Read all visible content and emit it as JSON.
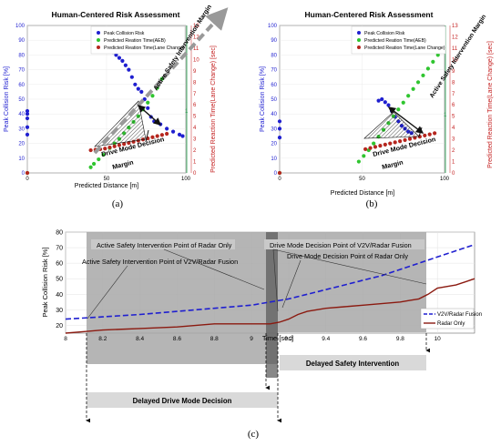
{
  "colors": {
    "risk": "#1f1fd0",
    "aeb": "#2fc52f",
    "lane": "#b5261e",
    "green_axis": "#1e9e48",
    "red_axis": "#c42020",
    "fusion_line": "#1f1fd0",
    "radar_line": "#8b1a10",
    "gray_box": "#a8a8a8",
    "dark_band": "#6a6a6a",
    "label_box": "#d9d9d9"
  },
  "chart_data": [
    {
      "type": "scatter",
      "panel_label": "(a)",
      "title": "Human-Centered Risk Assessment",
      "xlabel": "Predicted Distance [m]",
      "ylabel": "Peak Collision Risk [%]",
      "y2label": "Predicted Reaction Time(Lane Change) [sec]",
      "xlim": [
        0,
        100
      ],
      "ylim": [
        0,
        100
      ],
      "y2lim": [
        0,
        13
      ],
      "xticks": [
        "0",
        "50",
        "100"
      ],
      "yticks": [
        "0",
        "10",
        "20",
        "30",
        "40",
        "50",
        "60",
        "70",
        "80",
        "90",
        "100"
      ],
      "y2ticks": [
        "0",
        "1",
        "2",
        "3",
        "4",
        "5",
        "6",
        "7",
        "8",
        "9",
        "10",
        "11",
        "12",
        "13"
      ],
      "inner_tick_right": "1",
      "legend": [
        "Peak Collision Risk",
        "Predicted Reation Time(AEB)",
        "Predicted Reation Time(Lane Change)"
      ],
      "legend_position": "top-right",
      "annotations": {
        "drive_mode_decision": "Drive Mode Decision",
        "margin": "Margin",
        "active_safety": "Active Safety Intervention Margin"
      },
      "series": [
        {
          "name": "Peak Collision Risk",
          "points": [
            [
              0,
              26
            ],
            [
              0,
              31
            ],
            [
              0,
              37
            ],
            [
              0,
              40
            ],
            [
              0,
              42
            ],
            [
              52,
              85
            ],
            [
              54,
              82
            ],
            [
              56,
              80
            ],
            [
              58,
              78
            ],
            [
              60,
              76
            ],
            [
              62,
              73
            ],
            [
              64,
              70
            ],
            [
              66,
              65
            ],
            [
              68,
              60
            ],
            [
              70,
              57
            ],
            [
              72,
              55
            ],
            [
              74,
              50
            ],
            [
              76,
              44
            ],
            [
              78,
              38
            ],
            [
              80,
              35
            ],
            [
              84,
              33
            ],
            [
              88,
              30
            ],
            [
              92,
              28
            ],
            [
              96,
              26
            ],
            [
              98,
              25
            ]
          ]
        },
        {
          "name": "Predicted Reation Time(AEB)",
          "points": [
            [
              0,
              0
            ],
            [
              40,
              0.5
            ],
            [
              42,
              0.8
            ],
            [
              45,
              1.2
            ],
            [
              48,
              1.6
            ],
            [
              52,
              2.2
            ],
            [
              55,
              2.6
            ],
            [
              58,
              3.0
            ],
            [
              61,
              3.5
            ],
            [
              64,
              4.0
            ],
            [
              67,
              4.5
            ],
            [
              70,
              5.0
            ],
            [
              73,
              5.6
            ],
            [
              76,
              6.2
            ],
            [
              79,
              6.8
            ],
            [
              82,
              7.5
            ],
            [
              85,
              8.3
            ]
          ]
        },
        {
          "name": "Predicted Reation Time(Lane Change)",
          "points": [
            [
              0,
              0
            ],
            [
              40,
              2.0
            ],
            [
              43,
              2.05
            ],
            [
              46,
              2.1
            ],
            [
              49,
              2.15
            ],
            [
              52,
              2.25
            ],
            [
              55,
              2.35
            ],
            [
              58,
              2.45
            ],
            [
              61,
              2.55
            ],
            [
              64,
              2.65
            ],
            [
              67,
              2.75
            ],
            [
              70,
              2.85
            ],
            [
              73,
              2.95
            ],
            [
              76,
              3.05
            ],
            [
              79,
              3.15
            ],
            [
              82,
              3.25
            ],
            [
              85,
              3.35
            ],
            [
              88,
              3.45
            ]
          ]
        }
      ]
    },
    {
      "type": "scatter",
      "panel_label": "(b)",
      "title": "Human-Centered Risk Assessment",
      "xlabel": "Predicted Distance [m]",
      "ylabel": "Peak Collision Risk [%]",
      "y2label": "Predicted Reaction Time(Lane Change) [sec]",
      "xlim": [
        0,
        100
      ],
      "ylim": [
        0,
        100
      ],
      "y2lim": [
        0,
        13
      ],
      "xticks": [
        "0",
        "50",
        "100"
      ],
      "yticks": [
        "0",
        "10",
        "20",
        "30",
        "40",
        "50",
        "60",
        "70",
        "80",
        "90",
        "100"
      ],
      "y2ticks": [
        "0",
        "1",
        "2",
        "3",
        "4",
        "5",
        "6",
        "7",
        "8",
        "9",
        "10",
        "11",
        "12",
        "13"
      ],
      "inner_tick_right": "1",
      "legend": [
        "Peak Collision Risk",
        "Predicted Reation Time(AEB)",
        "Predicted Reation Time(Lane Change)"
      ],
      "legend_position": "top-right",
      "annotations": {
        "drive_mode_decision": "Drive Mode Decision",
        "margin": "Margin",
        "active_safety": "Active Safety Intervention Margin"
      },
      "series": [
        {
          "name": "Peak Collision Risk",
          "points": [
            [
              0,
              24
            ],
            [
              0,
              30
            ],
            [
              0,
              35
            ],
            [
              60,
              49
            ],
            [
              62,
              50
            ],
            [
              64,
              48
            ],
            [
              66,
              46
            ],
            [
              68,
              42
            ],
            [
              70,
              38
            ],
            [
              72,
              35
            ],
            [
              74,
              32
            ],
            [
              76,
              30
            ],
            [
              78,
              28
            ],
            [
              80,
              27
            ]
          ]
        },
        {
          "name": "Predicted Reation Time(AEB)",
          "points": [
            [
              0,
              0
            ],
            [
              48,
              1.0
            ],
            [
              51,
              1.5
            ],
            [
              54,
              2.0
            ],
            [
              57,
              2.6
            ],
            [
              60,
              3.2
            ],
            [
              63,
              3.8
            ],
            [
              66,
              4.4
            ],
            [
              69,
              5.0
            ],
            [
              72,
              5.6
            ],
            [
              75,
              6.2
            ],
            [
              78,
              6.8
            ],
            [
              81,
              7.4
            ],
            [
              84,
              8.0
            ],
            [
              87,
              8.6
            ],
            [
              90,
              9.2
            ],
            [
              93,
              9.8
            ],
            [
              96,
              10.4
            ]
          ]
        },
        {
          "name": "Predicted Reation Time(Lane Change)",
          "points": [
            [
              0,
              0
            ],
            [
              52,
              2.1
            ],
            [
              55,
              2.2
            ],
            [
              58,
              2.3
            ],
            [
              61,
              2.4
            ],
            [
              64,
              2.5
            ],
            [
              67,
              2.6
            ],
            [
              70,
              2.7
            ],
            [
              73,
              2.8
            ],
            [
              76,
              2.9
            ],
            [
              79,
              3.0
            ],
            [
              82,
              3.1
            ],
            [
              85,
              3.2
            ],
            [
              88,
              3.3
            ],
            [
              91,
              3.4
            ],
            [
              94,
              3.5
            ]
          ]
        }
      ]
    },
    {
      "type": "line",
      "panel_label": "(c)",
      "xlabel": "Time [sec]",
      "ylabel": "Peak Collision Risk [%]",
      "xlim": [
        8,
        10.2
      ],
      "ylim": [
        15,
        80
      ],
      "xticks": [
        "8",
        "8.2",
        "8.4",
        "8.6",
        "8.8",
        "9",
        "9.2",
        "9.4",
        "9.6",
        "9.8",
        "10"
      ],
      "yticks": [
        "20",
        "30",
        "40",
        "50",
        "60",
        "70",
        "80"
      ],
      "legend_position": "bottom-right",
      "series": [
        {
          "name": "V2V/Radar Fusion",
          "x": [
            8.0,
            8.2,
            8.4,
            8.6,
            8.8,
            9.0,
            9.1,
            9.2,
            9.3,
            9.4,
            9.5,
            9.6,
            9.7,
            9.8,
            9.9,
            10.0,
            10.1,
            10.2
          ],
          "values": [
            24,
            25.5,
            27,
            29,
            31,
            33,
            35,
            37,
            40,
            43,
            46,
            49,
            52,
            56,
            60,
            64,
            68,
            72
          ]
        },
        {
          "name": "Radar Only",
          "x": [
            8.0,
            8.1,
            8.2,
            8.4,
            8.6,
            8.8,
            9.0,
            9.1,
            9.15,
            9.2,
            9.25,
            9.3,
            9.4,
            9.5,
            9.6,
            9.7,
            9.8,
            9.85,
            9.9,
            9.95,
            10.0,
            10.1,
            10.2
          ],
          "values": [
            15,
            16,
            17,
            18,
            19,
            21,
            21,
            21,
            22,
            24,
            27,
            29,
            31,
            32,
            33,
            34,
            35,
            36,
            37,
            40,
            44,
            46,
            50
          ]
        }
      ],
      "annotations": {
        "active_radar": "Active Safety Intervention Point of Radar Only",
        "drive_v2v": "Drive Mode Decision Point of V2V/Radar Fusion",
        "drive_radar": "Drive Mode Decision Point of Radar Only",
        "active_v2v": "Active Safety Intervention Point of V2V/Radar Fusion",
        "delayed_safety": "Delayed Safety Intervention",
        "delayed_drive": "Delayed Drive Mode Decision"
      }
    }
  ]
}
